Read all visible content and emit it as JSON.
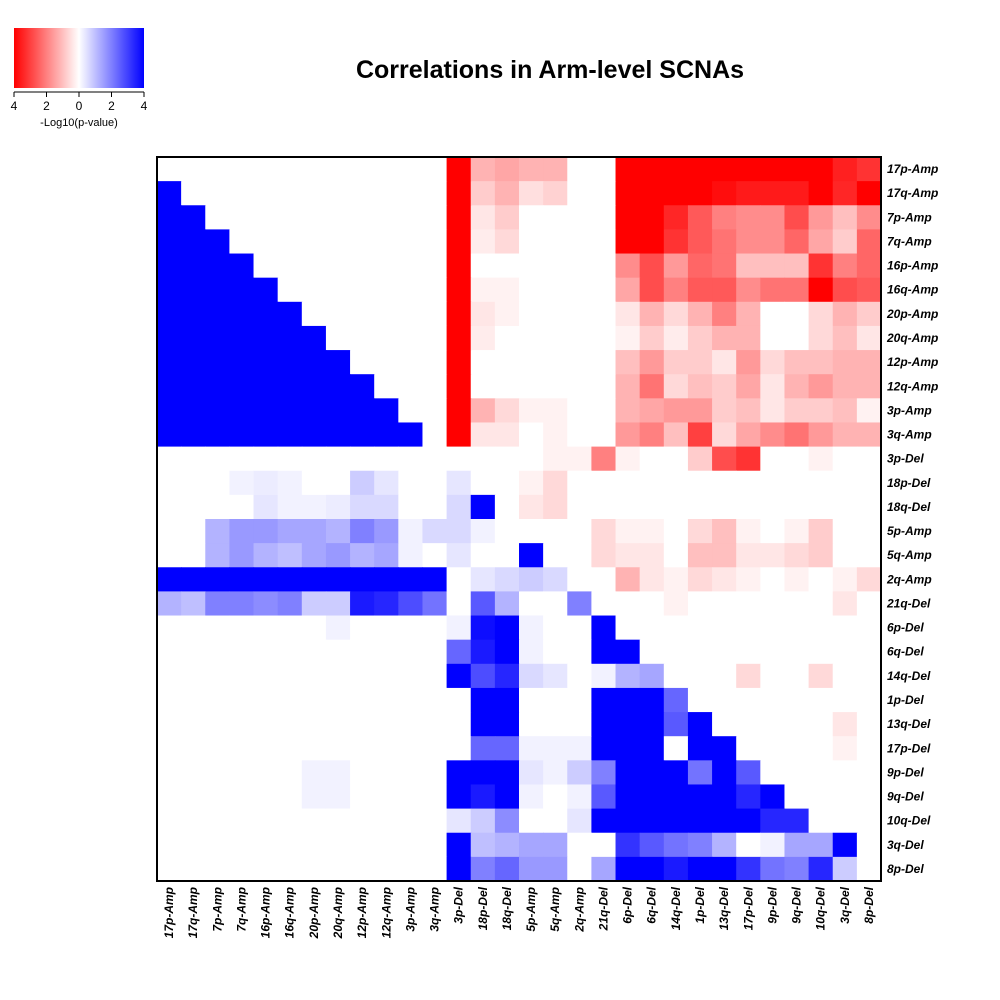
{
  "chart_data": {
    "type": "heatmap",
    "title": "Correlations in Arm-level SCNAs",
    "row_labels": [
      "17p-Amp",
      "17q-Amp",
      "7p-Amp",
      "7q-Amp",
      "16p-Amp",
      "16q-Amp",
      "20p-Amp",
      "20q-Amp",
      "12p-Amp",
      "12q-Amp",
      "3p-Amp",
      "3q-Amp",
      "3p-Del",
      "18p-Del",
      "18q-Del",
      "5p-Amp",
      "5q-Amp",
      "2q-Amp",
      "21q-Del",
      "6p-Del",
      "6q-Del",
      "14q-Del",
      "1p-Del",
      "13q-Del",
      "17p-Del",
      "9p-Del",
      "9q-Del",
      "10q-Del",
      "3q-Del",
      "8p-Del"
    ],
    "col_labels": [
      "17p-Amp",
      "17q-Amp",
      "7p-Amp",
      "7q-Amp",
      "16p-Amp",
      "16q-Amp",
      "20p-Amp",
      "20q-Amp",
      "12p-Amp",
      "12q-Amp",
      "3p-Amp",
      "3q-Amp",
      "3p-Del",
      "18p-Del",
      "18q-Del",
      "5p-Amp",
      "5q-Amp",
      "2q-Amp",
      "21q-Del",
      "6p-Del",
      "6q-Del",
      "14q-Del",
      "1p-Del",
      "13q-Del",
      "17p-Del",
      "9p-Del",
      "9q-Del",
      "10q-Del",
      "3q-Del",
      "8p-Del"
    ],
    "values": [
      [
        0,
        0,
        0,
        0,
        0,
        0,
        0,
        0,
        0,
        0,
        0,
        0,
        -4,
        -1.2,
        -1.4,
        -1.2,
        -1.2,
        0,
        0,
        -4,
        -4,
        -4,
        -4,
        -4,
        -4,
        -4,
        -4,
        -4,
        -3.5,
        -3.2
      ],
      [
        4,
        0,
        0,
        0,
        0,
        0,
        0,
        0,
        0,
        0,
        0,
        0,
        -4,
        -0.8,
        -1.2,
        -0.5,
        -0.7,
        0,
        0,
        -4,
        -4,
        -4,
        -4,
        -3.8,
        -3.6,
        -3.6,
        -3.6,
        -4,
        -3.4,
        -4
      ],
      [
        4,
        4,
        0,
        0,
        0,
        0,
        0,
        0,
        0,
        0,
        0,
        0,
        -4,
        -0.4,
        -0.8,
        0,
        0,
        0,
        0,
        -4,
        -4,
        -3.4,
        -2.6,
        -2,
        -1.8,
        -1.8,
        -2.8,
        -1.6,
        -1,
        -1.8
      ],
      [
        4,
        4,
        4,
        0,
        0,
        0,
        0,
        0,
        0,
        0,
        0,
        0,
        -4,
        -0.3,
        -0.6,
        0,
        0,
        0,
        0,
        -4,
        -4,
        -3.2,
        -2.6,
        -2.2,
        -1.8,
        -1.8,
        -2.4,
        -1.4,
        -0.8,
        -2.4
      ],
      [
        4,
        4,
        4,
        4,
        0,
        0,
        0,
        0,
        0,
        0,
        0,
        0,
        -4,
        0,
        0,
        0,
        0,
        0,
        0,
        -1.8,
        -2.8,
        -1.6,
        -2.4,
        -2.2,
        -1,
        -1,
        -1,
        -3.2,
        -2,
        -2.4
      ],
      [
        4,
        4,
        4,
        4,
        4,
        0,
        0,
        0,
        0,
        0,
        0,
        0,
        -4,
        -0.2,
        -0.2,
        0,
        0,
        0,
        0,
        -1.4,
        -2.8,
        -2,
        -2.6,
        -2.6,
        -1.8,
        -2.2,
        -2.2,
        -4,
        -2.8,
        -2.6
      ],
      [
        4,
        4,
        4,
        4,
        4,
        4,
        0,
        0,
        0,
        0,
        0,
        0,
        -4,
        -0.4,
        -0.2,
        0,
        0,
        0,
        0,
        -0.4,
        -1.2,
        -0.6,
        -1.2,
        -2,
        -1.2,
        0,
        0,
        -0.6,
        -1.2,
        -0.8
      ],
      [
        4,
        4,
        4,
        4,
        4,
        4,
        4,
        0,
        0,
        0,
        0,
        0,
        -4,
        -0.3,
        0,
        0,
        0,
        0,
        0,
        -0.2,
        -0.8,
        -0.3,
        -0.8,
        -1.2,
        -1.2,
        0,
        0,
        -0.6,
        -1,
        -0.4
      ],
      [
        4,
        4,
        4,
        4,
        4,
        4,
        4,
        4,
        0,
        0,
        0,
        0,
        -4,
        0,
        0,
        0,
        0,
        0,
        0,
        -1,
        -1.6,
        -0.8,
        -0.8,
        -0.4,
        -1.6,
        -0.6,
        -1,
        -1,
        -1.2,
        -1.2
      ],
      [
        4,
        4,
        4,
        4,
        4,
        4,
        4,
        4,
        4,
        0,
        0,
        0,
        -4,
        0,
        0,
        0,
        0,
        0,
        0,
        -1.2,
        -2.2,
        -0.6,
        -1,
        -0.8,
        -1.4,
        -0.4,
        -1.2,
        -1.6,
        -1.2,
        -1.2
      ],
      [
        4,
        4,
        4,
        4,
        4,
        4,
        4,
        4,
        4,
        4,
        0,
        0,
        -4,
        -1.2,
        -0.6,
        -0.2,
        -0.2,
        0,
        0,
        -1.2,
        -1.4,
        -1.6,
        -1.6,
        -0.8,
        -1,
        -0.4,
        -0.8,
        -0.8,
        -1,
        -0.2
      ],
      [
        4,
        4,
        4,
        4,
        4,
        4,
        4,
        4,
        4,
        4,
        4,
        0,
        -4,
        -0.4,
        -0.4,
        0,
        -0.2,
        0,
        0,
        -1.6,
        -2,
        -1,
        -3,
        -0.6,
        -1.4,
        -1.8,
        -2.2,
        -1.6,
        -1.2,
        -1.2
      ],
      [
        0,
        0,
        0,
        0,
        0,
        0,
        0,
        0,
        0,
        0,
        0,
        0,
        0,
        0,
        0,
        0,
        -0.2,
        -0.2,
        -2,
        -0.2,
        0,
        0,
        -0.8,
        -2.8,
        -3.2,
        0,
        0,
        -0.2,
        0,
        0
      ],
      [
        0,
        0,
        0,
        0.2,
        0.3,
        0.2,
        0,
        0,
        0.8,
        0.4,
        0,
        0,
        0.4,
        0,
        0,
        -0.2,
        -0.6,
        0,
        0,
        0,
        0,
        0,
        0,
        0,
        0,
        0,
        0,
        0,
        0,
        0
      ],
      [
        0,
        0,
        0,
        0,
        0.4,
        0.2,
        0.2,
        0.3,
        0.6,
        0.6,
        0,
        0,
        0.6,
        4,
        0,
        -0.4,
        -0.6,
        0,
        0,
        0,
        0,
        0,
        0,
        0,
        0,
        0,
        0,
        0,
        0,
        0
      ],
      [
        0,
        0,
        1.2,
        1.6,
        1.6,
        1.4,
        1.4,
        1.2,
        2,
        1.6,
        0.2,
        0.6,
        0.6,
        0.2,
        0,
        0,
        0,
        0,
        -0.6,
        -0.2,
        -0.2,
        0,
        -0.6,
        -1,
        -0.2,
        0,
        -0.2,
        -0.8,
        0,
        0
      ],
      [
        0,
        0,
        1.2,
        1.6,
        1.2,
        1,
        1.4,
        1.6,
        1.2,
        1.4,
        0.2,
        0,
        0.4,
        0,
        0,
        4,
        0,
        0,
        -0.6,
        -0.4,
        -0.4,
        0,
        -1,
        -1,
        -0.4,
        -0.4,
        -0.6,
        -0.8,
        0,
        0
      ],
      [
        4,
        4,
        4,
        4,
        4,
        4,
        4,
        4,
        4,
        4,
        4,
        4,
        0,
        0.4,
        0.6,
        0.8,
        0.6,
        0,
        0,
        -1.2,
        -0.4,
        -0.2,
        -0.6,
        -0.4,
        -0.2,
        0,
        -0.2,
        0,
        -0.2,
        -0.6
      ],
      [
        1.2,
        1,
        2,
        2,
        1.8,
        2,
        0.8,
        0.8,
        3.6,
        3.4,
        2.8,
        2.2,
        0,
        2.6,
        1.2,
        0,
        0,
        2,
        0,
        0,
        0,
        -0.2,
        0,
        0,
        0,
        0,
        0,
        0,
        -0.4,
        0
      ],
      [
        0,
        0,
        0,
        0,
        0,
        0,
        0,
        0.2,
        0,
        0,
        0,
        0,
        0.2,
        3.8,
        4,
        0.2,
        0,
        0,
        4,
        0,
        0,
        0,
        0,
        0,
        0,
        0,
        0,
        0,
        0,
        0
      ],
      [
        0,
        0,
        0,
        0,
        0,
        0,
        0,
        0,
        0,
        0,
        0,
        0,
        2.4,
        3.6,
        4,
        0.2,
        0,
        0,
        4,
        4,
        0,
        0,
        0,
        0,
        0,
        0,
        0,
        0,
        0,
        0
      ],
      [
        0,
        0,
        0,
        0,
        0,
        0,
        0,
        0,
        0,
        0,
        0,
        0,
        4,
        2.8,
        3.4,
        0.6,
        0.4,
        0,
        0.2,
        1.2,
        1.4,
        0,
        0,
        0,
        -0.6,
        0,
        0,
        -0.6,
        0,
        0
      ],
      [
        0,
        0,
        0,
        0,
        0,
        0,
        0,
        0,
        0,
        0,
        0,
        0,
        0,
        4,
        4,
        0,
        0,
        0,
        4,
        4,
        4,
        2.4,
        0,
        0,
        0,
        0,
        0,
        0,
        0,
        0
      ],
      [
        0,
        0,
        0,
        0,
        0,
        0,
        0,
        0,
        0,
        0,
        0,
        0,
        0,
        4,
        4,
        0,
        0,
        0,
        4,
        4,
        4,
        2.6,
        4,
        0,
        0,
        0,
        0,
        0,
        -0.4,
        0
      ],
      [
        0,
        0,
        0,
        0,
        0,
        0,
        0,
        0,
        0,
        0,
        0,
        0,
        0,
        2.4,
        2.4,
        0.2,
        0.2,
        0.2,
        4,
        4,
        4,
        0,
        4,
        4,
        0,
        0,
        0,
        0,
        -0.2,
        0
      ],
      [
        0,
        0,
        0,
        0,
        0,
        0,
        0.2,
        0.2,
        0,
        0,
        0,
        0,
        4,
        4,
        4,
        0.4,
        0.2,
        0.8,
        2,
        4,
        4,
        4,
        2.2,
        4,
        2.6,
        0,
        0,
        0,
        0,
        0
      ],
      [
        0,
        0,
        0,
        0,
        0,
        0,
        0.2,
        0.2,
        0,
        0,
        0,
        0,
        4,
        3.6,
        4,
        0.2,
        0,
        0.2,
        2.6,
        4,
        4,
        4,
        4,
        4,
        3.4,
        4,
        0,
        0,
        0,
        0
      ],
      [
        0,
        0,
        0,
        0,
        0,
        0,
        0,
        0,
        0,
        0,
        0,
        0,
        0.4,
        0.8,
        1.8,
        0,
        0,
        0.4,
        4,
        4,
        4,
        4,
        4,
        4,
        4,
        3.4,
        3.4,
        0,
        0,
        0
      ],
      [
        0,
        0,
        0,
        0,
        0,
        0,
        0,
        0,
        0,
        0,
        0,
        0,
        4,
        1,
        1.2,
        1.4,
        1.4,
        0,
        0,
        3.2,
        2.6,
        2.2,
        2,
        1.2,
        0,
        0.2,
        1.4,
        1.4,
        4,
        0
      ],
      [
        0,
        0,
        0,
        0,
        0,
        0,
        0,
        0,
        0,
        0,
        0,
        0,
        4,
        2,
        2.4,
        1.6,
        1.6,
        0,
        1.4,
        4,
        4,
        3.6,
        4,
        4,
        3.2,
        2.2,
        2,
        3.4,
        0.8,
        0
      ]
    ],
    "legend": {
      "label": "-Log10(p-value)",
      "ticks": [
        "4",
        "2",
        "0",
        "2",
        "4"
      ],
      "range": [
        -4,
        4
      ],
      "low_color": "#ff0000",
      "mid_color": "#ffffff",
      "high_color": "#0000ff"
    }
  }
}
